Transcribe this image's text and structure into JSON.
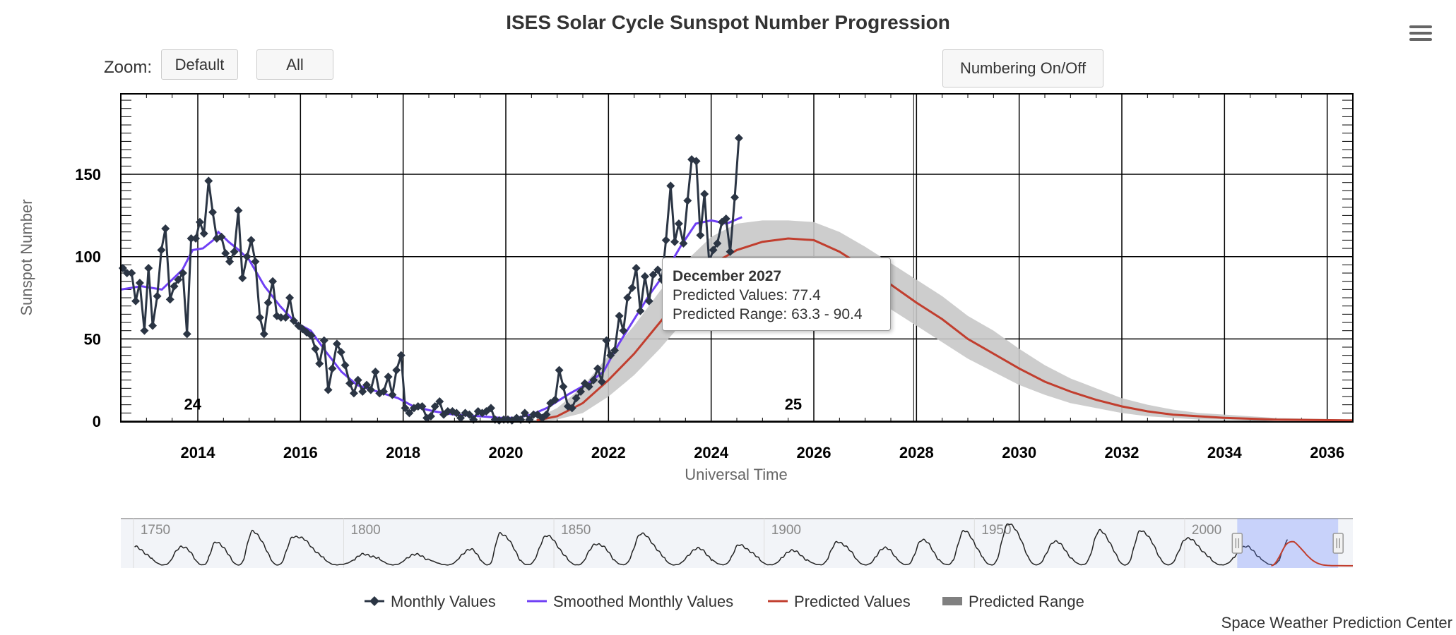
{
  "header": {
    "title": "ISES Solar Cycle Sunspot Number Progression",
    "zoom_label": "Zoom:",
    "zoom_default": "Default",
    "zoom_all": "All",
    "numbering_toggle": "Numbering On/Off",
    "menu_icon": "hamburger-menu-icon"
  },
  "tooltip": {
    "title": "December 2027",
    "line1": "Predicted Values: 77.4",
    "line2": "Predicted Range: 63.3 - 90.4"
  },
  "credit": "Space Weather Prediction Center",
  "chart_data": {
    "type": "line",
    "title": "ISES Solar Cycle Sunspot Number Progression",
    "xlabel": "Universal Time",
    "ylabel": "Sunspot Number",
    "xlim": [
      2012.5,
      2036.5
    ],
    "ylim": [
      0,
      200
    ],
    "x_ticks": [
      2014,
      2016,
      2018,
      2020,
      2022,
      2024,
      2026,
      2028,
      2030,
      2032,
      2034,
      2036
    ],
    "y_ticks": [
      0,
      50,
      100,
      150
    ],
    "cycle_labels": [
      {
        "x": 2013.9,
        "y": 10,
        "text": "24"
      },
      {
        "x": 2025.6,
        "y": 10,
        "text": "25"
      }
    ],
    "series": [
      {
        "name": "Monthly Values",
        "color": "#2b3544",
        "marker": "diamond",
        "points": [
          [
            2012.54,
            93
          ],
          [
            2012.62,
            90
          ],
          [
            2012.71,
            90
          ],
          [
            2012.79,
            73
          ],
          [
            2012.87,
            84
          ],
          [
            2012.96,
            55
          ],
          [
            2013.04,
            93
          ],
          [
            2013.12,
            58
          ],
          [
            2013.21,
            76
          ],
          [
            2013.29,
            104
          ],
          [
            2013.37,
            117
          ],
          [
            2013.46,
            74
          ],
          [
            2013.54,
            82
          ],
          [
            2013.62,
            86
          ],
          [
            2013.71,
            90
          ],
          [
            2013.79,
            53
          ],
          [
            2013.87,
            111
          ],
          [
            2013.96,
            111
          ],
          [
            2014.04,
            121
          ],
          [
            2014.12,
            114
          ],
          [
            2014.21,
            146
          ],
          [
            2014.29,
            127
          ],
          [
            2014.37,
            111
          ],
          [
            2014.46,
            112
          ],
          [
            2014.54,
            102
          ],
          [
            2014.62,
            97
          ],
          [
            2014.71,
            103
          ],
          [
            2014.79,
            128
          ],
          [
            2014.87,
            87
          ],
          [
            2014.96,
            100
          ],
          [
            2015.04,
            110
          ],
          [
            2015.12,
            97
          ],
          [
            2015.21,
            63
          ],
          [
            2015.29,
            53
          ],
          [
            2015.37,
            72
          ],
          [
            2015.46,
            85
          ],
          [
            2015.54,
            64
          ],
          [
            2015.62,
            63
          ],
          [
            2015.71,
            63
          ],
          [
            2015.79,
            75
          ],
          [
            2015.87,
            61
          ],
          [
            2015.96,
            58
          ],
          [
            2016.04,
            56
          ],
          [
            2016.12,
            54
          ],
          [
            2016.21,
            52
          ],
          [
            2016.29,
            44
          ],
          [
            2016.37,
            35
          ],
          [
            2016.46,
            49
          ],
          [
            2016.54,
            19
          ],
          [
            2016.62,
            32
          ],
          [
            2016.71,
            47
          ],
          [
            2016.79,
            42
          ],
          [
            2016.87,
            34
          ],
          [
            2016.96,
            23
          ],
          [
            2017.04,
            17
          ],
          [
            2017.12,
            25
          ],
          [
            2017.21,
            18
          ],
          [
            2017.29,
            22
          ],
          [
            2017.37,
            19
          ],
          [
            2017.46,
            30
          ],
          [
            2017.54,
            17
          ],
          [
            2017.62,
            18
          ],
          [
            2017.71,
            27
          ],
          [
            2017.79,
            16
          ],
          [
            2017.87,
            31
          ],
          [
            2017.96,
            40
          ],
          [
            2018.04,
            8
          ],
          [
            2018.12,
            5
          ],
          [
            2018.21,
            8
          ],
          [
            2018.29,
            9
          ],
          [
            2018.37,
            9
          ],
          [
            2018.46,
            2
          ],
          [
            2018.54,
            3
          ],
          [
            2018.62,
            9
          ],
          [
            2018.71,
            12
          ],
          [
            2018.79,
            4
          ],
          [
            2018.87,
            6
          ],
          [
            2018.96,
            6
          ],
          [
            2019.04,
            5
          ],
          [
            2019.12,
            2
          ],
          [
            2019.21,
            5
          ],
          [
            2019.29,
            4
          ],
          [
            2019.37,
            1
          ],
          [
            2019.46,
            6
          ],
          [
            2019.54,
            5
          ],
          [
            2019.62,
            6
          ],
          [
            2019.71,
            8
          ],
          [
            2019.79,
            1
          ],
          [
            2019.87,
            0.5
          ],
          [
            2019.96,
            1
          ],
          [
            2020.04,
            1
          ],
          [
            2020.12,
            0.5
          ],
          [
            2020.21,
            2
          ],
          [
            2020.29,
            1
          ],
          [
            2020.37,
            5
          ],
          [
            2020.46,
            1
          ],
          [
            2020.54,
            4
          ],
          [
            2020.62,
            4
          ],
          [
            2020.71,
            2
          ],
          [
            2020.79,
            4
          ],
          [
            2020.87,
            11
          ],
          [
            2020.96,
            13
          ],
          [
            2021.04,
            31
          ],
          [
            2021.12,
            21
          ],
          [
            2021.21,
            9
          ],
          [
            2021.29,
            8
          ],
          [
            2021.37,
            14
          ],
          [
            2021.46,
            18
          ],
          [
            2021.54,
            23
          ],
          [
            2021.62,
            21
          ],
          [
            2021.71,
            25
          ],
          [
            2021.79,
            32
          ],
          [
            2021.87,
            24
          ],
          [
            2021.96,
            49
          ],
          [
            2022.04,
            40
          ],
          [
            2022.12,
            43
          ],
          [
            2022.21,
            64
          ],
          [
            2022.29,
            55
          ],
          [
            2022.37,
            75
          ],
          [
            2022.46,
            81
          ],
          [
            2022.54,
            93
          ],
          [
            2022.62,
            67
          ],
          [
            2022.71,
            88
          ],
          [
            2022.79,
            73
          ],
          [
            2022.87,
            89
          ],
          [
            2022.96,
            92
          ],
          [
            2023.04,
            86
          ],
          [
            2023.12,
            110
          ],
          [
            2023.21,
            143
          ],
          [
            2023.29,
            109
          ],
          [
            2023.37,
            120
          ],
          [
            2023.46,
            108
          ],
          [
            2023.54,
            134
          ],
          [
            2023.62,
            159
          ],
          [
            2023.71,
            158
          ],
          [
            2023.79,
            113
          ],
          [
            2023.87,
            138
          ],
          [
            2023.96,
            97
          ],
          [
            2024.04,
            104
          ],
          [
            2024.12,
            108
          ],
          [
            2024.21,
            121
          ],
          [
            2024.29,
            123
          ],
          [
            2024.37,
            103
          ],
          [
            2024.46,
            136
          ],
          [
            2024.54,
            172
          ]
        ]
      },
      {
        "name": "Smoothed Monthly Values",
        "color": "#6f3ff5",
        "points": [
          [
            2012.5,
            80
          ],
          [
            2012.9,
            82
          ],
          [
            2013.3,
            80
          ],
          [
            2013.7,
            92
          ],
          [
            2013.9,
            104
          ],
          [
            2014.1,
            105
          ],
          [
            2014.3,
            110
          ],
          [
            2014.4,
            115
          ],
          [
            2014.6,
            109
          ],
          [
            2014.8,
            104
          ],
          [
            2015.0,
            98
          ],
          [
            2015.3,
            82
          ],
          [
            2015.6,
            70
          ],
          [
            2015.9,
            60
          ],
          [
            2016.2,
            55
          ],
          [
            2016.5,
            42
          ],
          [
            2016.8,
            30
          ],
          [
            2017.1,
            22
          ],
          [
            2017.5,
            18
          ],
          [
            2017.9,
            14
          ],
          [
            2018.2,
            9
          ],
          [
            2018.6,
            6
          ],
          [
            2019.0,
            4
          ],
          [
            2019.5,
            3
          ],
          [
            2019.9,
            2
          ],
          [
            2020.2,
            2
          ],
          [
            2020.5,
            4
          ],
          [
            2020.8,
            8
          ],
          [
            2021.2,
            16
          ],
          [
            2021.6,
            23
          ],
          [
            2021.9,
            30
          ],
          [
            2022.2,
            47
          ],
          [
            2022.5,
            62
          ],
          [
            2022.8,
            77
          ],
          [
            2023.1,
            90
          ],
          [
            2023.4,
            106
          ],
          [
            2023.7,
            120
          ],
          [
            2024.0,
            122
          ],
          [
            2024.3,
            120
          ],
          [
            2024.6,
            124
          ]
        ]
      },
      {
        "name": "Predicted Values",
        "color": "#c13e2e",
        "points": [
          [
            2020.6,
            0.5
          ],
          [
            2021.0,
            3
          ],
          [
            2021.5,
            11
          ],
          [
            2022.0,
            25
          ],
          [
            2022.5,
            41
          ],
          [
            2023.0,
            60
          ],
          [
            2023.5,
            79
          ],
          [
            2024.0,
            95
          ],
          [
            2024.5,
            104
          ],
          [
            2025.0,
            109
          ],
          [
            2025.5,
            111
          ],
          [
            2026.0,
            110
          ],
          [
            2026.5,
            103
          ],
          [
            2027.0,
            93
          ],
          [
            2027.5,
            83
          ],
          [
            2028.0,
            72
          ],
          [
            2028.5,
            62
          ],
          [
            2029.0,
            50
          ],
          [
            2029.5,
            41
          ],
          [
            2030.0,
            32
          ],
          [
            2030.5,
            24
          ],
          [
            2031.0,
            18
          ],
          [
            2031.5,
            13
          ],
          [
            2032.0,
            9
          ],
          [
            2032.5,
            6
          ],
          [
            2033.0,
            4
          ],
          [
            2033.5,
            3
          ],
          [
            2034.0,
            2
          ],
          [
            2035.0,
            1
          ],
          [
            2036.5,
            0.5
          ]
        ]
      },
      {
        "name": "Predicted Range",
        "color": "#c8c8c8",
        "range": [
          [
            2020.6,
            0,
            2
          ],
          [
            2021.0,
            1,
            8
          ],
          [
            2021.5,
            5,
            21
          ],
          [
            2022.0,
            15,
            40
          ],
          [
            2022.5,
            28,
            58
          ],
          [
            2023.0,
            44,
            79
          ],
          [
            2023.5,
            62,
            97
          ],
          [
            2024.0,
            78,
            112
          ],
          [
            2024.5,
            88,
            120
          ],
          [
            2025.0,
            94,
            122
          ],
          [
            2025.5,
            97,
            122
          ],
          [
            2026.0,
            96,
            121
          ],
          [
            2026.5,
            89,
            115
          ],
          [
            2027.0,
            79,
            106
          ],
          [
            2027.5,
            68,
            96
          ],
          [
            2028.0,
            58,
            86
          ],
          [
            2028.5,
            48,
            76
          ],
          [
            2029.0,
            38,
            64
          ],
          [
            2029.5,
            30,
            55
          ],
          [
            2030.0,
            22,
            44
          ],
          [
            2030.5,
            16,
            34
          ],
          [
            2031.0,
            11,
            26
          ],
          [
            2031.5,
            8,
            20
          ],
          [
            2032.0,
            5,
            14
          ],
          [
            2032.5,
            3,
            10
          ],
          [
            2033.0,
            2,
            7
          ],
          [
            2033.5,
            1,
            5
          ],
          [
            2034.0,
            1,
            4
          ],
          [
            2035.0,
            0,
            2
          ],
          [
            2036.5,
            0,
            1
          ]
        ]
      }
    ],
    "navigator": {
      "xlim": [
        1747,
        2040
      ],
      "ticks": [
        1750,
        1800,
        1850,
        1900,
        1950,
        2000
      ],
      "selection": [
        2012.5,
        2036.5
      ],
      "cycle_peaks": [
        [
          1750.3,
          80
        ],
        [
          1761.5,
          86
        ],
        [
          1769.7,
          106
        ],
        [
          1778.4,
          154
        ],
        [
          1788.1,
          132
        ],
        [
          1805.2,
          47
        ],
        [
          1816.4,
          46
        ],
        [
          1829.9,
          71
        ],
        [
          1837.2,
          146
        ],
        [
          1848.1,
          131
        ],
        [
          1860.1,
          98
        ],
        [
          1870.6,
          140
        ],
        [
          1883.9,
          74
        ],
        [
          1894.1,
          88
        ],
        [
          1906.2,
          64
        ],
        [
          1917.6,
          105
        ],
        [
          1928.4,
          78
        ],
        [
          1937.4,
          114
        ],
        [
          1947.5,
          152
        ],
        [
          1958.2,
          190
        ],
        [
          1968.9,
          106
        ],
        [
          1979.9,
          155
        ],
        [
          1989.6,
          158
        ],
        [
          2000.3,
          120
        ],
        [
          2014.3,
          82
        ],
        [
          2025.0,
          115
        ]
      ]
    },
    "legend": [
      "Monthly Values",
      "Smoothed Monthly Values",
      "Predicted Values",
      "Predicted Range"
    ]
  }
}
